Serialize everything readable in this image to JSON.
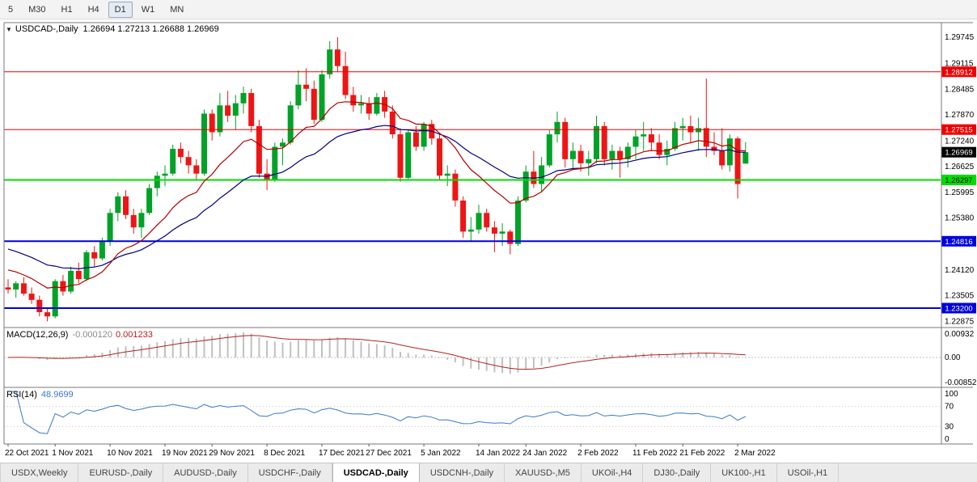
{
  "toolbar": {
    "timeframes": [
      {
        "label": "5",
        "name": "m5",
        "active": false
      },
      {
        "label": "M30",
        "name": "m30",
        "active": false
      },
      {
        "label": "H1",
        "name": "h1",
        "active": false
      },
      {
        "label": "H4",
        "name": "h4",
        "active": false
      },
      {
        "label": "D1",
        "name": "d1",
        "active": true
      },
      {
        "label": "W1",
        "name": "w1",
        "active": false
      },
      {
        "label": "MN",
        "name": "mn",
        "active": false
      }
    ]
  },
  "chart_header": {
    "title": "USDCAD-,Daily",
    "ohlc": "1.26694 1.27213 1.26688 1.26969"
  },
  "macd_panel": {
    "label": "MACD(12,26,9)",
    "value_main": "-0.000120",
    "value_signal": "0.001233",
    "axis_labels": [
      "0.00932",
      "0.00",
      "-0.00852"
    ]
  },
  "rsi_panel": {
    "label": "RSI(14)",
    "value": "48.9699",
    "axis_labels": [
      "100",
      "70",
      "30",
      "0"
    ],
    "levels": [
      70,
      30
    ]
  },
  "chart_data": {
    "type": "candlestick",
    "symbol": "USDCAD-",
    "timeframe": "Daily",
    "current_bar": {
      "open": 1.26694,
      "high": 1.27213,
      "low": 1.26688,
      "close": 1.26969
    },
    "current_price_badge": {
      "label": "1.26969",
      "bg": "#000000",
      "text": "#ffffff"
    },
    "price_range": {
      "max": 1.301,
      "min": 1.2273
    },
    "price_axis_labels": [
      "1.29745",
      "1.29115",
      "1.28485",
      "1.27870",
      "1.27240",
      "1.26625",
      "1.25995",
      "1.25380",
      "1.24750",
      "1.24120",
      "1.23505",
      "1.22875"
    ],
    "horizontal_lines": [
      {
        "price": 1.28912,
        "label": "1.28912",
        "color": "#ee0000",
        "text": "#ffffff",
        "width": 1
      },
      {
        "price": 1.27515,
        "label": "1.27515",
        "color": "#ee0000",
        "text": "#ffffff",
        "width": 1
      },
      {
        "price": 1.26297,
        "label": "1.26297",
        "color": "#00dd00",
        "text": "#000000",
        "width": 2
      },
      {
        "price": 1.24816,
        "label": "1.24816",
        "color": "#0000dd",
        "text": "#ffffff",
        "width": 2
      },
      {
        "price": 1.232,
        "label": "1.23200",
        "color": "#0000dd",
        "text": "#ffffff",
        "width": 2
      }
    ],
    "x_axis_labels": [
      {
        "index": 0,
        "label": "22 Oct 2021"
      },
      {
        "index": 6,
        "label": "1 Nov 2021"
      },
      {
        "index": 13,
        "label": "10 Nov 2021"
      },
      {
        "index": 20,
        "label": "19 Nov 2021"
      },
      {
        "index": 26,
        "label": "29 Nov 2021"
      },
      {
        "index": 33,
        "label": "8 Dec 2021"
      },
      {
        "index": 40,
        "label": "17 Dec 2021"
      },
      {
        "index": 46,
        "label": "27 Dec 2021"
      },
      {
        "index": 53,
        "label": "5 Jan 2022"
      },
      {
        "index": 60,
        "label": "14 Jan 2022"
      },
      {
        "index": 66,
        "label": "24 Jan 2022"
      },
      {
        "index": 73,
        "label": "2 Feb 2022"
      },
      {
        "index": 80,
        "label": "11 Feb 2022"
      },
      {
        "index": 86,
        "label": "21 Feb 2022"
      },
      {
        "index": 93,
        "label": "2 Mar 2022"
      }
    ],
    "colors": {
      "bull": "#00a227",
      "bear": "#ee1515",
      "ma_fast": "#b40000",
      "ma_slow": "#000080",
      "macd_hist": "#c0c0c0",
      "macd_signal": "#b22222",
      "rsi": "#3c78c8"
    },
    "ma_periods": {
      "fast": 13,
      "slow": 28
    },
    "ma_seeds": {
      "fast": 1.242,
      "slow": 1.247
    },
    "candles": [
      [
        1.237,
        1.239,
        1.2355,
        1.2365
      ],
      [
        1.2365,
        1.2385,
        1.2345,
        1.238
      ],
      [
        1.238,
        1.2395,
        1.235,
        1.2355
      ],
      [
        1.2355,
        1.237,
        1.233,
        1.234
      ],
      [
        1.234,
        1.235,
        1.23,
        1.231
      ],
      [
        1.231,
        1.232,
        1.2288,
        1.23
      ],
      [
        1.23,
        1.239,
        1.2295,
        1.2385
      ],
      [
        1.2385,
        1.24,
        1.235,
        1.236
      ],
      [
        1.236,
        1.242,
        1.2355,
        1.241
      ],
      [
        1.241,
        1.243,
        1.238,
        1.239
      ],
      [
        1.239,
        1.246,
        1.2385,
        1.2455
      ],
      [
        1.2455,
        1.247,
        1.242,
        1.244
      ],
      [
        1.244,
        1.249,
        1.2435,
        1.248
      ],
      [
        1.248,
        1.256,
        1.247,
        1.255
      ],
      [
        1.255,
        1.26,
        1.253,
        1.259
      ],
      [
        1.259,
        1.2605,
        1.2535,
        1.2545
      ],
      [
        1.2545,
        1.256,
        1.25,
        1.2515
      ],
      [
        1.2515,
        1.256,
        1.249,
        1.255
      ],
      [
        1.255,
        1.262,
        1.2545,
        1.261
      ],
      [
        1.261,
        1.265,
        1.259,
        1.264
      ],
      [
        1.264,
        1.2665,
        1.2615,
        1.2645
      ],
      [
        1.2645,
        1.2715,
        1.264,
        1.2705
      ],
      [
        1.2705,
        1.272,
        1.267,
        1.2685
      ],
      [
        1.2685,
        1.27,
        1.2645,
        1.2665
      ],
      [
        1.2665,
        1.268,
        1.263,
        1.2645
      ],
      [
        1.2645,
        1.28,
        1.264,
        1.279
      ],
      [
        1.279,
        1.28,
        1.2725,
        1.2745
      ],
      [
        1.2745,
        1.284,
        1.2735,
        1.281
      ],
      [
        1.281,
        1.2845,
        1.277,
        1.2785
      ],
      [
        1.2785,
        1.2835,
        1.275,
        1.2815
      ],
      [
        1.2815,
        1.2855,
        1.279,
        1.284
      ],
      [
        1.284,
        1.285,
        1.2745,
        1.276
      ],
      [
        1.276,
        1.2775,
        1.2635,
        1.2645
      ],
      [
        1.2645,
        1.268,
        1.2605,
        1.263
      ],
      [
        1.263,
        1.272,
        1.2625,
        1.271
      ],
      [
        1.271,
        1.273,
        1.2665,
        1.272
      ],
      [
        1.272,
        1.282,
        1.2715,
        1.281
      ],
      [
        1.281,
        1.2895,
        1.28,
        1.286
      ],
      [
        1.286,
        1.29,
        1.282,
        1.285
      ],
      [
        1.285,
        1.287,
        1.2765,
        1.2775
      ],
      [
        1.2775,
        1.2895,
        1.277,
        1.2885
      ],
      [
        1.2885,
        1.2965,
        1.2875,
        1.2945
      ],
      [
        1.2945,
        1.2975,
        1.289,
        1.2905
      ],
      [
        1.2905,
        1.294,
        1.2825,
        1.2835
      ],
      [
        1.2835,
        1.2855,
        1.2795,
        1.281
      ],
      [
        1.281,
        1.2835,
        1.279,
        1.2815
      ],
      [
        1.2815,
        1.283,
        1.2775,
        1.279
      ],
      [
        1.279,
        1.284,
        1.2785,
        1.283
      ],
      [
        1.283,
        1.2845,
        1.278,
        1.2795
      ],
      [
        1.2795,
        1.281,
        1.273,
        1.274
      ],
      [
        1.274,
        1.2755,
        1.2625,
        1.2635
      ],
      [
        1.2635,
        1.275,
        1.263,
        1.2745
      ],
      [
        1.2745,
        1.276,
        1.27,
        1.271
      ],
      [
        1.271,
        1.277,
        1.27,
        1.2765
      ],
      [
        1.2765,
        1.2775,
        1.2715,
        1.273
      ],
      [
        1.273,
        1.274,
        1.263,
        1.264
      ],
      [
        1.264,
        1.2665,
        1.2615,
        1.2645
      ],
      [
        1.2645,
        1.2655,
        1.2565,
        1.258
      ],
      [
        1.258,
        1.259,
        1.249,
        1.2505
      ],
      [
        1.2505,
        1.254,
        1.248,
        1.251
      ],
      [
        1.251,
        1.257,
        1.25,
        1.255
      ],
      [
        1.255,
        1.256,
        1.2505,
        1.2515
      ],
      [
        1.2515,
        1.253,
        1.2455,
        1.25
      ],
      [
        1.25,
        1.2525,
        1.247,
        1.2505
      ],
      [
        1.2505,
        1.251,
        1.245,
        1.2475
      ],
      [
        1.2475,
        1.259,
        1.247,
        1.258
      ],
      [
        1.258,
        1.2665,
        1.2575,
        1.265
      ],
      [
        1.265,
        1.27,
        1.261,
        1.262
      ],
      [
        1.262,
        1.2685,
        1.26,
        1.2665
      ],
      [
        1.2665,
        1.275,
        1.266,
        1.274
      ],
      [
        1.274,
        1.2795,
        1.272,
        1.277
      ],
      [
        1.277,
        1.278,
        1.266,
        1.268
      ],
      [
        1.268,
        1.272,
        1.2655,
        1.27
      ],
      [
        1.27,
        1.2715,
        1.265,
        1.267
      ],
      [
        1.267,
        1.27,
        1.264,
        1.268
      ],
      [
        1.268,
        1.2785,
        1.267,
        1.276
      ],
      [
        1.276,
        1.277,
        1.2665,
        1.268
      ],
      [
        1.268,
        1.2715,
        1.2655,
        1.27
      ],
      [
        1.27,
        1.271,
        1.2635,
        1.268
      ],
      [
        1.268,
        1.272,
        1.266,
        1.271
      ],
      [
        1.271,
        1.275,
        1.268,
        1.2735
      ],
      [
        1.2735,
        1.277,
        1.27,
        1.274
      ],
      [
        1.274,
        1.2755,
        1.27,
        1.272
      ],
      [
        1.272,
        1.274,
        1.268,
        1.269
      ],
      [
        1.269,
        1.2725,
        1.2665,
        1.2705
      ],
      [
        1.2705,
        1.277,
        1.27,
        1.2755
      ],
      [
        1.2755,
        1.278,
        1.2725,
        1.276
      ],
      [
        1.276,
        1.2785,
        1.272,
        1.2745
      ],
      [
        1.2745,
        1.278,
        1.27,
        1.2755
      ],
      [
        1.2755,
        1.2875,
        1.2685,
        1.271
      ],
      [
        1.271,
        1.2745,
        1.269,
        1.27
      ],
      [
        1.27,
        1.2755,
        1.2655,
        1.2665
      ],
      [
        1.2665,
        1.274,
        1.265,
        1.273
      ],
      [
        1.273,
        1.2735,
        1.2585,
        1.262
      ],
      [
        1.26694,
        1.27213,
        1.26688,
        1.26969
      ]
    ]
  },
  "bottom_tabs": [
    {
      "label": "USDX,Weekly",
      "active": false
    },
    {
      "label": "EURUSD-,Daily",
      "active": false
    },
    {
      "label": "AUDUSD-,Daily",
      "active": false
    },
    {
      "label": "USDCHF-,Daily",
      "active": false
    },
    {
      "label": "USDCAD-,Daily",
      "active": true
    },
    {
      "label": "USDCNH-,Daily",
      "active": false
    },
    {
      "label": "XAUUSD-,M5",
      "active": false
    },
    {
      "label": "UKOil-,H4",
      "active": false
    },
    {
      "label": "DJ30-,Daily",
      "active": false
    },
    {
      "label": "UK100-,H1",
      "active": false
    },
    {
      "label": "USOil-,H1",
      "active": false
    }
  ]
}
